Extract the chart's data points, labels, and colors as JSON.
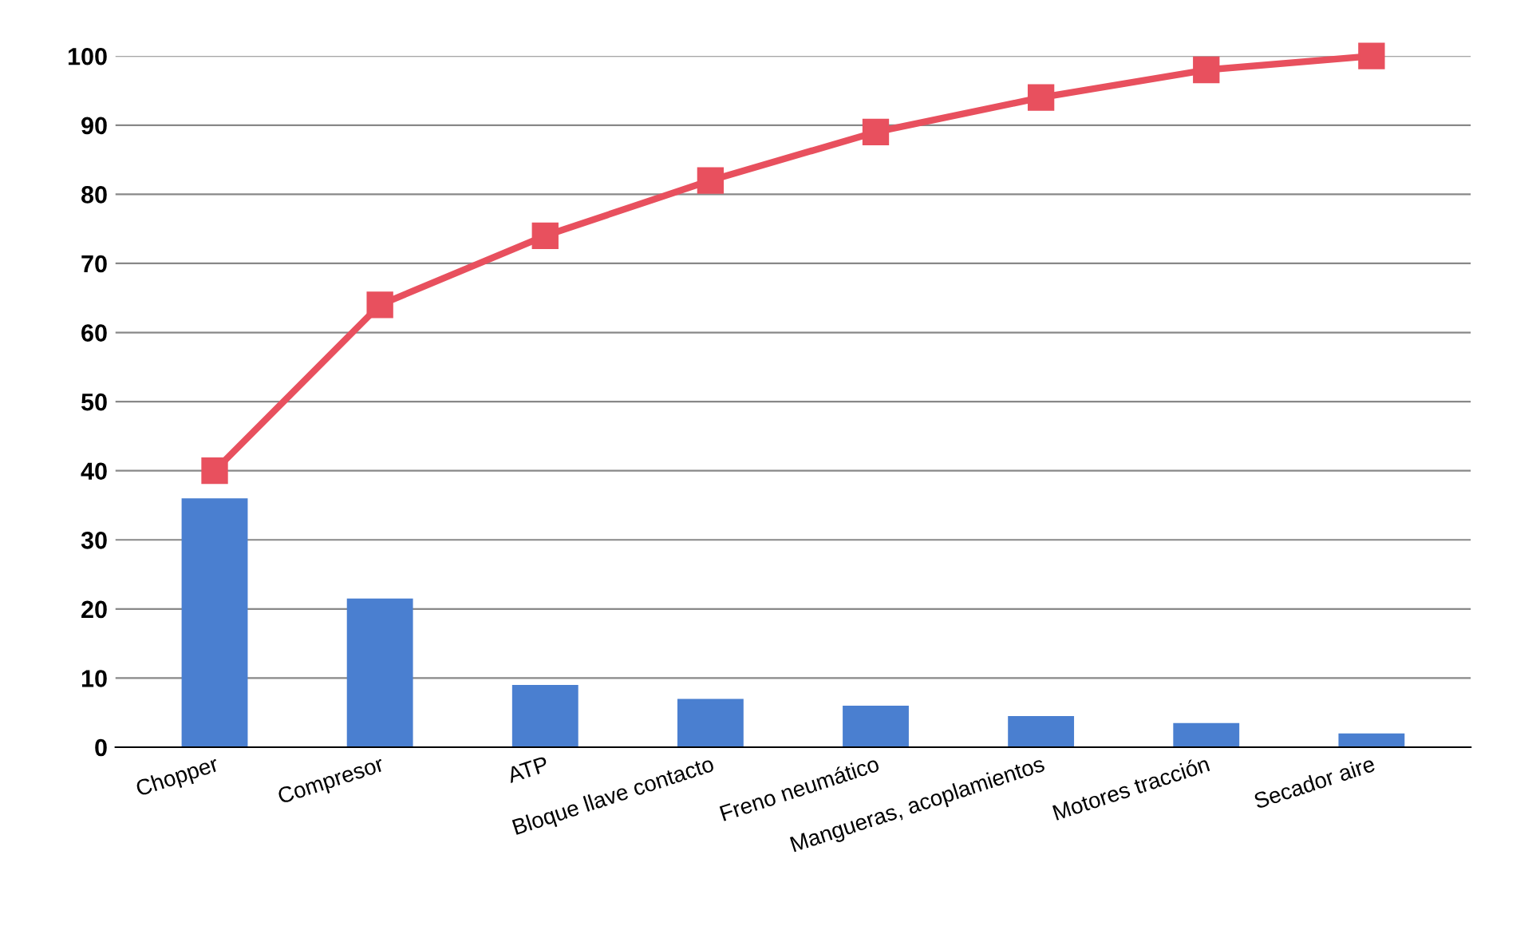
{
  "chart_data": {
    "type": "bar",
    "categories": [
      "Chopper",
      "Compresor",
      "ATP",
      "Bloque llave contacto",
      "Freno neumático",
      "Mangueras, acoplamientos",
      "Motores tracción",
      "Secador aire"
    ],
    "series": [
      {
        "color": "#4a7fd0",
        "values": [
          36,
          21.5,
          9,
          7,
          6,
          4.5,
          3.5,
          2
        ]
      },
      {
        "type": "line",
        "color": "#e8505e",
        "marker": "square",
        "values": [
          40,
          64,
          74,
          82,
          89,
          94,
          98,
          100
        ]
      }
    ],
    "ylim": [
      0,
      100
    ],
    "yticks": [
      0,
      10,
      20,
      30,
      40,
      50,
      60,
      70,
      80,
      90,
      100
    ],
    "grid": "y"
  }
}
